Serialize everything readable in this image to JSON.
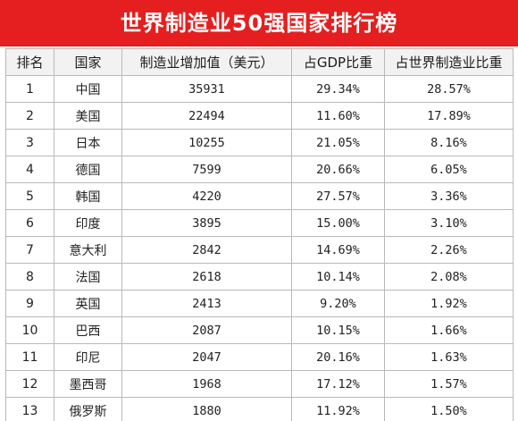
{
  "title": "世界制造业50强国家排行榜",
  "headers": {
    "rank": "排名",
    "country": "国家",
    "value": "制造业增加值（美元）",
    "gdp_share": "占GDP比重",
    "world_share": "占世界制造业比重"
  },
  "rows": [
    {
      "rank": "1",
      "country": "中国",
      "value": "35931",
      "gdp_share": "29.34%",
      "world_share": "28.57%"
    },
    {
      "rank": "2",
      "country": "美国",
      "value": "22494",
      "gdp_share": "11.60%",
      "world_share": "17.89%"
    },
    {
      "rank": "3",
      "country": "日本",
      "value": "10255",
      "gdp_share": "21.05%",
      "world_share": "8.16%"
    },
    {
      "rank": "4",
      "country": "德国",
      "value": "7599",
      "gdp_share": "20.66%",
      "world_share": "6.05%"
    },
    {
      "rank": "5",
      "country": "韩国",
      "value": "4220",
      "gdp_share": "27.57%",
      "world_share": "3.36%"
    },
    {
      "rank": "6",
      "country": "印度",
      "value": "3895",
      "gdp_share": "15.00%",
      "world_share": "3.10%"
    },
    {
      "rank": "7",
      "country": "意大利",
      "value": "2842",
      "gdp_share": "14.69%",
      "world_share": "2.26%"
    },
    {
      "rank": "8",
      "country": "法国",
      "value": "2618",
      "gdp_share": "10.14%",
      "world_share": "2.08%"
    },
    {
      "rank": "9",
      "country": "英国",
      "value": "2413",
      "gdp_share": "9.20%",
      "world_share": "1.92%"
    },
    {
      "rank": "10",
      "country": "巴西",
      "value": "2087",
      "gdp_share": "10.15%",
      "world_share": "1.66%"
    },
    {
      "rank": "11",
      "country": "印尼",
      "value": "2047",
      "gdp_share": "20.16%",
      "world_share": "1.63%"
    },
    {
      "rank": "12",
      "country": "墨西哥",
      "value": "1968",
      "gdp_share": "17.12%",
      "world_share": "1.57%"
    },
    {
      "rank": "13",
      "country": "俄罗斯",
      "value": "1880",
      "gdp_share": "11.92%",
      "world_share": "1.50%"
    }
  ]
}
